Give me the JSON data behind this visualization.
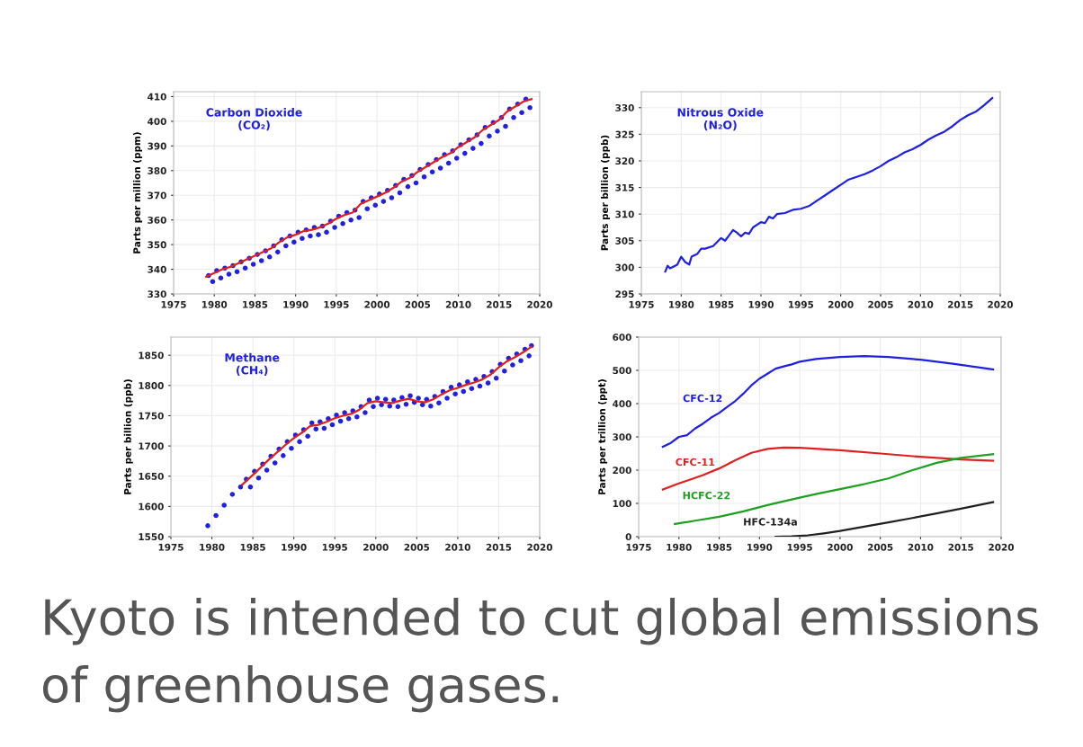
{
  "chart_data": [
    {
      "type": "line",
      "title": "Carbon Dioxide\n(CO₂)",
      "ylabel": "Parts per million (ppm)",
      "xlim": [
        1975,
        2020
      ],
      "xticks": [
        1975,
        1980,
        1985,
        1990,
        1995,
        2000,
        2005,
        2010,
        2015,
        2020
      ],
      "ylim": [
        330,
        412
      ],
      "yticks": [
        330,
        340,
        350,
        360,
        370,
        380,
        390,
        400,
        410
      ],
      "grid": true,
      "series": [
        {
          "type": "scatter",
          "marker": "circle",
          "color": "#2020e0",
          "x": [
            1979.3,
            1979.8,
            1980.3,
            1980.8,
            1981.3,
            1981.8,
            1982.3,
            1982.8,
            1983.3,
            1983.8,
            1984.3,
            1984.8,
            1985.3,
            1985.8,
            1986.3,
            1986.8,
            1987.3,
            1987.8,
            1988.3,
            1988.8,
            1989.3,
            1989.8,
            1990.3,
            1990.8,
            1991.3,
            1991.8,
            1992.3,
            1992.8,
            1993.3,
            1993.8,
            1994.3,
            1994.8,
            1995.3,
            1995.8,
            1996.3,
            1996.8,
            1997.3,
            1997.8,
            1998.3,
            1998.8,
            1999.3,
            1999.8,
            2000.3,
            2000.8,
            2001.3,
            2001.8,
            2002.3,
            2002.8,
            2003.3,
            2003.8,
            2004.3,
            2004.8,
            2005.3,
            2005.8,
            2006.3,
            2006.8,
            2007.3,
            2007.8,
            2008.3,
            2008.8,
            2009.3,
            2009.8,
            2010.3,
            2010.8,
            2011.3,
            2011.8,
            2012.3,
            2012.8,
            2013.3,
            2013.8,
            2014.3,
            2014.8,
            2015.3,
            2015.8,
            2016.3,
            2016.8,
            2017.3,
            2017.8,
            2018.3,
            2018.8
          ],
          "values": [
            337.5,
            335,
            339.5,
            336.5,
            340.5,
            338,
            341.5,
            339,
            343,
            340.5,
            344.5,
            342,
            346,
            343.5,
            347.5,
            345,
            349.5,
            347,
            352,
            349.5,
            353.5,
            351,
            355,
            352.5,
            356,
            353.5,
            357,
            354,
            357.5,
            355,
            359.5,
            357,
            361.5,
            358.5,
            363,
            360,
            364,
            361,
            367.5,
            364.5,
            369,
            366,
            370.5,
            367.5,
            372,
            369,
            374,
            371,
            376.5,
            373.5,
            378,
            375,
            380.5,
            377.5,
            382.5,
            379.5,
            384.5,
            381,
            386.5,
            383,
            388,
            385,
            390.5,
            387,
            392.5,
            389,
            394.5,
            391,
            397.5,
            394,
            399.5,
            396,
            401.5,
            398,
            405,
            401.5,
            407,
            403.5,
            409,
            405.5
          ]
        },
        {
          "type": "line",
          "color": "#e02020",
          "x": [
            1979,
            1980,
            1981,
            1982,
            1983,
            1984,
            1985,
            1986,
            1987,
            1988,
            1989,
            1990,
            1991,
            1992,
            1993,
            1994,
            1995,
            1996,
            1997,
            1998,
            1999,
            2000,
            2001,
            2002,
            2003,
            2004,
            2005,
            2006,
            2007,
            2008,
            2009,
            2010,
            2011,
            2012,
            2013,
            2014,
            2015,
            2016,
            2017,
            2018,
            2019
          ],
          "values": [
            337,
            338.5,
            340,
            341,
            342.5,
            344,
            345.5,
            347,
            348.5,
            351,
            353,
            354,
            355.5,
            356,
            357,
            358.5,
            360.5,
            362,
            363,
            366.5,
            368,
            369.5,
            371,
            373,
            375.5,
            377,
            379.5,
            381.5,
            383.5,
            385.5,
            387,
            389.5,
            391.5,
            393.5,
            396.5,
            398.5,
            400.5,
            404,
            406,
            408,
            409
          ]
        }
      ]
    },
    {
      "type": "line",
      "title": "Nitrous Oxide\n(N₂O)",
      "ylabel": "Parts per billion (ppb)",
      "xlim": [
        1975,
        2020
      ],
      "xticks": [
        1975,
        1980,
        1985,
        1990,
        1995,
        2000,
        2005,
        2010,
        2015,
        2020
      ],
      "ylim": [
        295,
        333
      ],
      "yticks": [
        295,
        300,
        305,
        310,
        315,
        320,
        325,
        330
      ],
      "grid": true,
      "series": [
        {
          "type": "line",
          "color": "#2020e0",
          "x": [
            1978,
            1978.3,
            1978.6,
            1979.5,
            1980,
            1980.5,
            1981,
            1981.3,
            1982,
            1982.5,
            1983,
            1984,
            1985,
            1985.5,
            1986,
            1986.5,
            1987,
            1987.5,
            1988,
            1988.5,
            1989,
            1990,
            1990.5,
            1991,
            1991.5,
            1992,
            1993,
            1994,
            1995,
            1996,
            1997,
            1998,
            1999,
            2000,
            2001,
            2002,
            2003,
            2004,
            2005,
            2006,
            2007,
            2008,
            2009,
            2010,
            2011,
            2012,
            2013,
            2014,
            2015,
            2016,
            2017,
            2018,
            2019
          ],
          "values": [
            299.2,
            300.3,
            299.8,
            300.5,
            302,
            301,
            300.5,
            302,
            302.5,
            303.5,
            303.5,
            304,
            305.5,
            305,
            306,
            307,
            306.5,
            305.8,
            306.5,
            306.3,
            307.5,
            308.5,
            308.3,
            309.5,
            309.2,
            310,
            310.2,
            310.8,
            311,
            311.5,
            312.5,
            313.5,
            314.5,
            315.5,
            316.5,
            317,
            317.5,
            318.2,
            319,
            320,
            320.7,
            321.6,
            322.2,
            323,
            324,
            324.8,
            325.5,
            326.5,
            327.7,
            328.6,
            329.3,
            330.5,
            331.8
          ]
        }
      ]
    },
    {
      "type": "line",
      "title": "Methane\n(CH₄)",
      "ylabel": "Parts per billion (ppb)",
      "xlim": [
        1975,
        2020
      ],
      "xticks": [
        1975,
        1980,
        1985,
        1990,
        1995,
        2000,
        2005,
        2010,
        2015,
        2020
      ],
      "ylim": [
        1550,
        1880
      ],
      "yticks": [
        1550,
        1600,
        1650,
        1700,
        1750,
        1800,
        1850
      ],
      "grid": true,
      "series": [
        {
          "type": "scatter",
          "marker": "circle",
          "color": "#2020e0",
          "x": [
            1979.5,
            1980.5,
            1981.5,
            1982.5,
            1983.5,
            1984.2,
            1984.7,
            1985.2,
            1985.7,
            1986.2,
            1986.7,
            1987.2,
            1987.7,
            1988.2,
            1988.7,
            1989.2,
            1989.7,
            1990.2,
            1990.7,
            1991.2,
            1991.7,
            1992.2,
            1992.7,
            1993.2,
            1993.7,
            1994.2,
            1994.7,
            1995.2,
            1995.7,
            1996.2,
            1996.7,
            1997.2,
            1997.7,
            1998.2,
            1998.7,
            1999.2,
            1999.7,
            2000.2,
            2000.7,
            2001.2,
            2001.7,
            2002.2,
            2002.7,
            2003.2,
            2003.7,
            2004.2,
            2004.7,
            2005.2,
            2005.7,
            2006.2,
            2006.7,
            2007.2,
            2007.7,
            2008.2,
            2008.7,
            2009.2,
            2009.7,
            2010.2,
            2010.7,
            2011.2,
            2011.7,
            2012.2,
            2012.7,
            2013.2,
            2013.7,
            2014.2,
            2014.7,
            2015.2,
            2015.7,
            2016.2,
            2016.7,
            2017.2,
            2017.7,
            2018.2,
            2018.7,
            2019.0
          ],
          "values": [
            1568,
            1585,
            1602,
            1620,
            1632,
            1645,
            1632,
            1658,
            1647,
            1670,
            1660,
            1683,
            1672,
            1695,
            1684,
            1707,
            1696,
            1718,
            1707,
            1727,
            1716,
            1738,
            1728,
            1740,
            1729,
            1745,
            1735,
            1751,
            1741,
            1755,
            1745,
            1758,
            1748,
            1765,
            1755,
            1776,
            1765,
            1779,
            1768,
            1777,
            1766,
            1776,
            1765,
            1780,
            1769,
            1783,
            1772,
            1779,
            1768,
            1777,
            1766,
            1782,
            1771,
            1790,
            1779,
            1797,
            1786,
            1801,
            1790,
            1806,
            1795,
            1810,
            1799,
            1815,
            1804,
            1823,
            1812,
            1835,
            1824,
            1845,
            1834,
            1852,
            1841,
            1860,
            1849,
            1866
          ]
        },
        {
          "type": "line",
          "color": "#e02020",
          "x": [
            1983.7,
            1985,
            1986,
            1987,
            1988,
            1989,
            1990,
            1991,
            1992,
            1993,
            1994,
            1995,
            1996,
            1997,
            1998,
            1999,
            2000,
            2001,
            2002,
            2003,
            2004,
            2005,
            2006,
            2007,
            2008,
            2009,
            2010,
            2011,
            2012,
            2013,
            2014,
            2015,
            2016,
            2017,
            2018,
            2019
          ],
          "values": [
            1636,
            1652,
            1665,
            1678,
            1690,
            1702,
            1713,
            1722,
            1733,
            1735,
            1740,
            1746,
            1750,
            1753,
            1760,
            1771,
            1774,
            1772,
            1771,
            1775,
            1778,
            1774,
            1772,
            1777,
            1785,
            1792,
            1796,
            1801,
            1805,
            1810,
            1818,
            1830,
            1840,
            1847,
            1855,
            1864
          ]
        }
      ]
    },
    {
      "type": "line",
      "ylabel": "Parts per trillion (ppt)",
      "xlim": [
        1975,
        2020
      ],
      "xticks": [
        1975,
        1980,
        1985,
        1990,
        1995,
        2000,
        2005,
        2010,
        2015,
        2020
      ],
      "ylim": [
        0,
        600
      ],
      "yticks": [
        0,
        100,
        200,
        300,
        400,
        500,
        600
      ],
      "grid": true,
      "annotations": [
        "Kyoto is intended to cut global emissions of greenhouse gases."
      ],
      "series": [
        {
          "name": "CFC-12",
          "color": "#2020e0",
          "x": [
            1978,
            1979,
            1980,
            1981,
            1982,
            1983,
            1984,
            1985,
            1986,
            1987,
            1988,
            1989,
            1990,
            1991,
            1992,
            1993,
            1994,
            1995,
            1997,
            2000,
            2003,
            2006,
            2010,
            2014,
            2019
          ],
          "values": [
            270,
            282,
            300,
            305,
            325,
            340,
            358,
            372,
            390,
            408,
            430,
            455,
            475,
            490,
            505,
            512,
            518,
            526,
            534,
            540,
            543,
            540,
            532,
            520,
            503
          ]
        },
        {
          "name": "CFC-11",
          "color": "#e02020",
          "x": [
            1978,
            1980,
            1983,
            1985,
            1987,
            1989,
            1991,
            1993,
            1995,
            2000,
            2005,
            2010,
            2015,
            2019
          ],
          "values": [
            142,
            160,
            185,
            205,
            230,
            252,
            264,
            268,
            267,
            260,
            250,
            240,
            232,
            228
          ]
        },
        {
          "name": "HCFC-22",
          "color": "#20a020",
          "x": [
            1979.5,
            1982,
            1985,
            1988,
            1991,
            1994,
            1997,
            2000,
            2003,
            2006,
            2009,
            2012,
            2015,
            2019
          ],
          "values": [
            38,
            48,
            60,
            76,
            95,
            112,
            128,
            143,
            158,
            175,
            200,
            222,
            237,
            248
          ]
        },
        {
          "name": "HFC-134a",
          "color": "#202020",
          "x": [
            1992,
            1994,
            1996,
            1998,
            2000,
            2003,
            2006,
            2009,
            2012,
            2015,
            2019
          ],
          "values": [
            0,
            1,
            4,
            10,
            17,
            30,
            43,
            56,
            70,
            84,
            104
          ]
        }
      ]
    }
  ]
}
